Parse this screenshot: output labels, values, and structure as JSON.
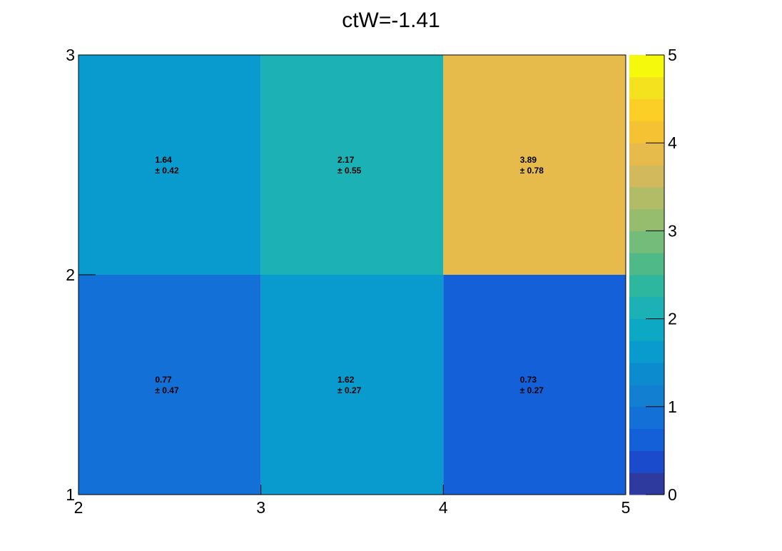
{
  "chart_data": {
    "type": "heatmap",
    "title": "ctW=-1.41",
    "xlabel": "",
    "ylabel": "",
    "x_edges": [
      2,
      3,
      4,
      5
    ],
    "y_edges": [
      1,
      2,
      3
    ],
    "xlim": [
      2,
      5
    ],
    "ylim": [
      1,
      3
    ],
    "x_tick_labels": [
      "2",
      "3",
      "4",
      "5"
    ],
    "y_tick_labels": [
      "1",
      "2",
      "3"
    ],
    "cells": [
      {
        "x": [
          2,
          3
        ],
        "y": [
          1,
          2
        ],
        "value": 0.77,
        "error": 0.47,
        "value_label": "0.77",
        "error_label": "± 0.47"
      },
      {
        "x": [
          3,
          4
        ],
        "y": [
          1,
          2
        ],
        "value": 1.62,
        "error": 0.27,
        "value_label": "1.62",
        "error_label": "± 0.27"
      },
      {
        "x": [
          4,
          5
        ],
        "y": [
          1,
          2
        ],
        "value": 0.73,
        "error": 0.27,
        "value_label": "0.73",
        "error_label": "± 0.27"
      },
      {
        "x": [
          2,
          3
        ],
        "y": [
          2,
          3
        ],
        "value": 1.64,
        "error": 0.42,
        "value_label": "1.64",
        "error_label": "± 0.42"
      },
      {
        "x": [
          3,
          4
        ],
        "y": [
          2,
          3
        ],
        "value": 2.17,
        "error": 0.55,
        "value_label": "2.17",
        "error_label": "± 0.55"
      },
      {
        "x": [
          4,
          5
        ],
        "y": [
          2,
          3
        ],
        "value": 3.89,
        "error": 0.78,
        "value_label": "3.89",
        "error_label": "± 0.78"
      }
    ],
    "colorbar": {
      "range": [
        0,
        5
      ],
      "tick_labels": [
        "0",
        "1",
        "2",
        "3",
        "4",
        "5"
      ],
      "bands": [
        "#2e3a9e",
        "#1a4bcc",
        "#1360d8",
        "#1370d6",
        "#127fd1",
        "#0c8cce",
        "#099bcd",
        "#0ca8c4",
        "#1cb1b4",
        "#2db79f",
        "#4fba88",
        "#74bc79",
        "#96bd6e",
        "#b2bb65",
        "#d1b95c",
        "#e6bb4c",
        "#f4c233",
        "#fbcf26",
        "#f4e21e",
        "#f5f90b"
      ]
    },
    "grid": false,
    "legend": "none"
  }
}
